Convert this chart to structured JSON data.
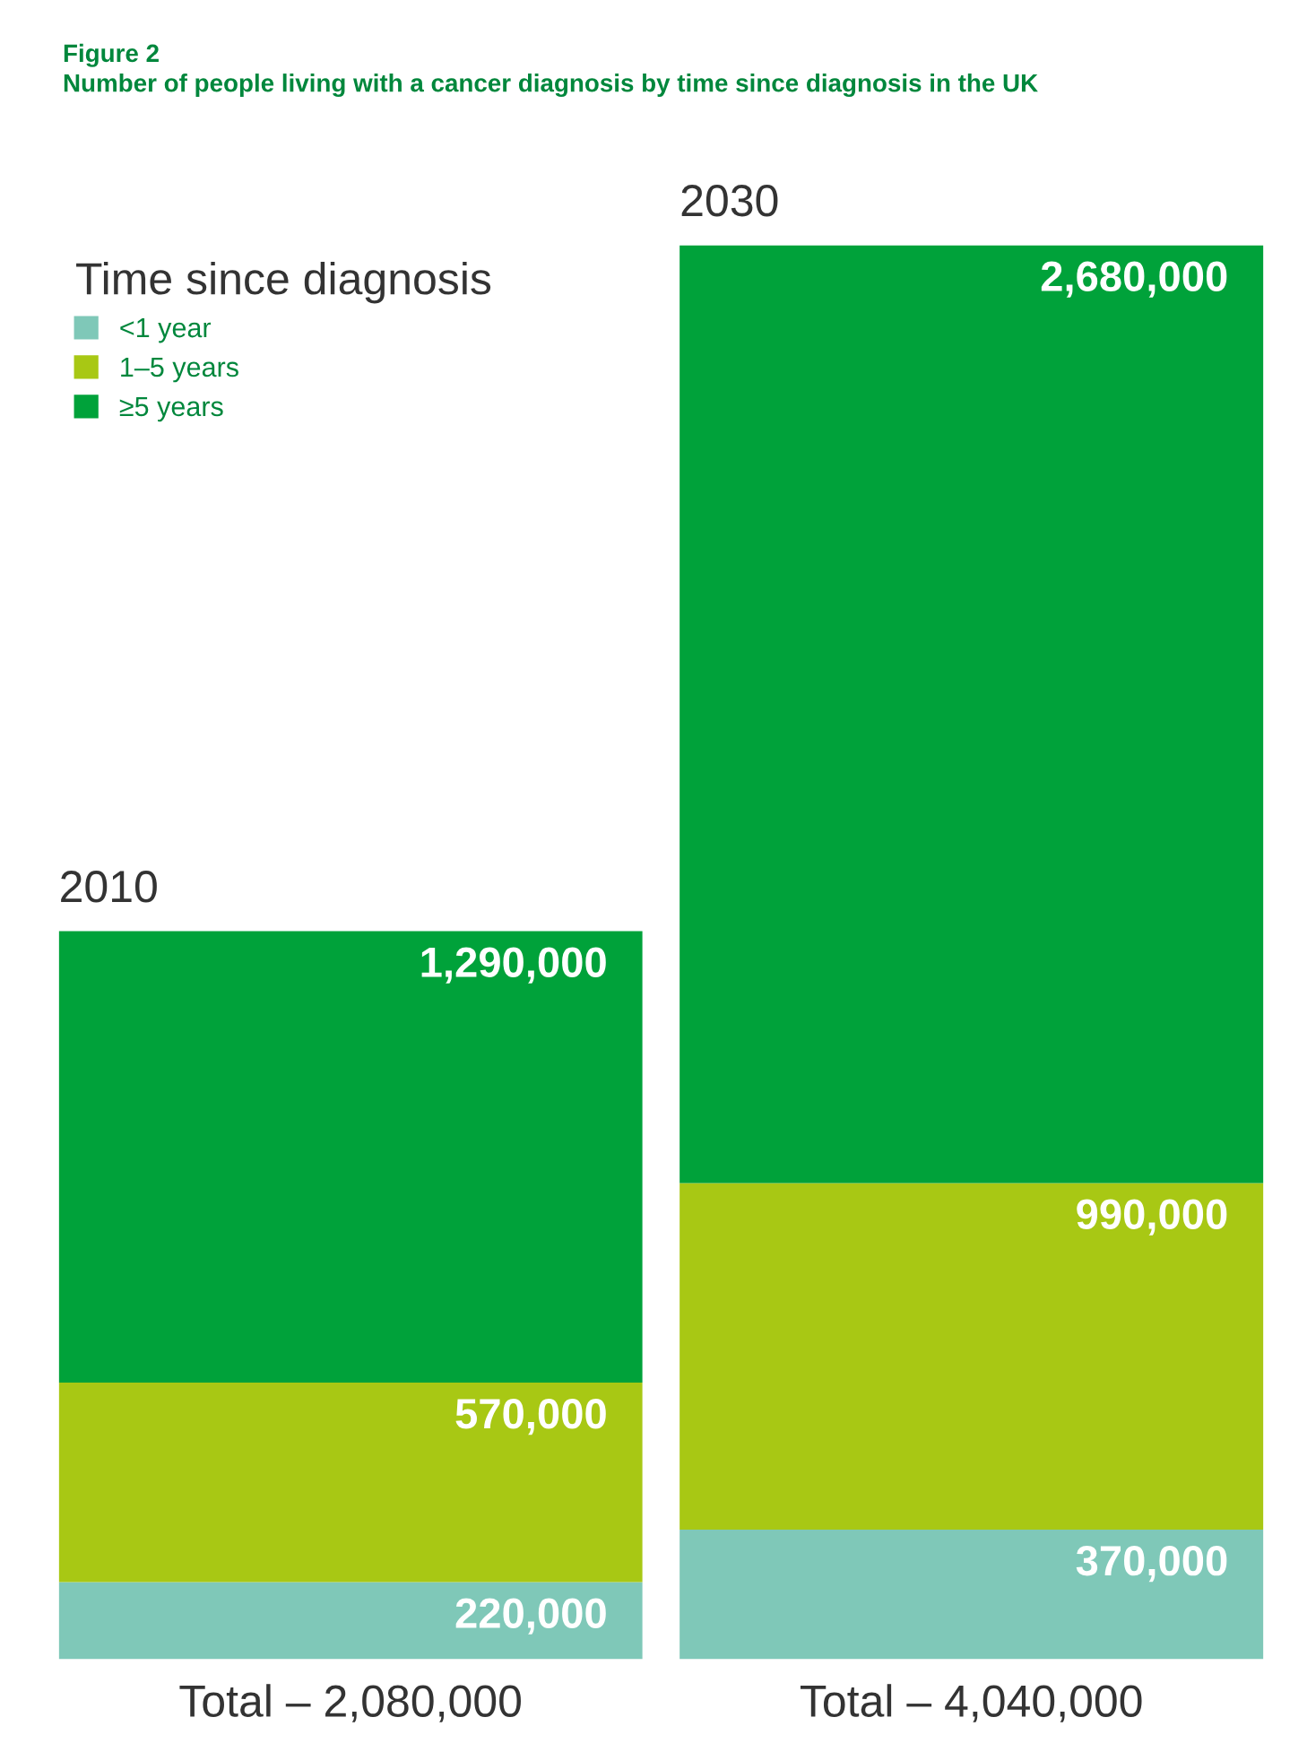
{
  "chart_data": {
    "type": "bar",
    "stacked": true,
    "title": "Figure 2",
    "subtitle": "Number of people living with a cancer diagnosis by time since diagnosis in the UK",
    "legend_title": "Time since diagnosis",
    "legend": "top left",
    "categories": [
      "2010",
      "2030"
    ],
    "series": [
      {
        "name": "<1 year",
        "color": "#7fc8b8",
        "values": [
          220000,
          370000
        ],
        "value_labels": [
          "220,000",
          "370,000"
        ]
      },
      {
        "name": "1–5 years",
        "color": "#a8c814",
        "values": [
          570000,
          990000
        ],
        "value_labels": [
          "570,000",
          "990,000"
        ]
      },
      {
        "name": "≥5 years",
        "color": "#00a23a",
        "values": [
          1290000,
          2680000
        ],
        "value_labels": [
          "1,290,000",
          "2,680,000"
        ]
      }
    ],
    "annotations": [
      {
        "text": "Total – 2,080,000",
        "x": "2010",
        "y": 0
      },
      {
        "text": "Total – 4,040,000",
        "x": "2030",
        "y": 0
      }
    ]
  }
}
